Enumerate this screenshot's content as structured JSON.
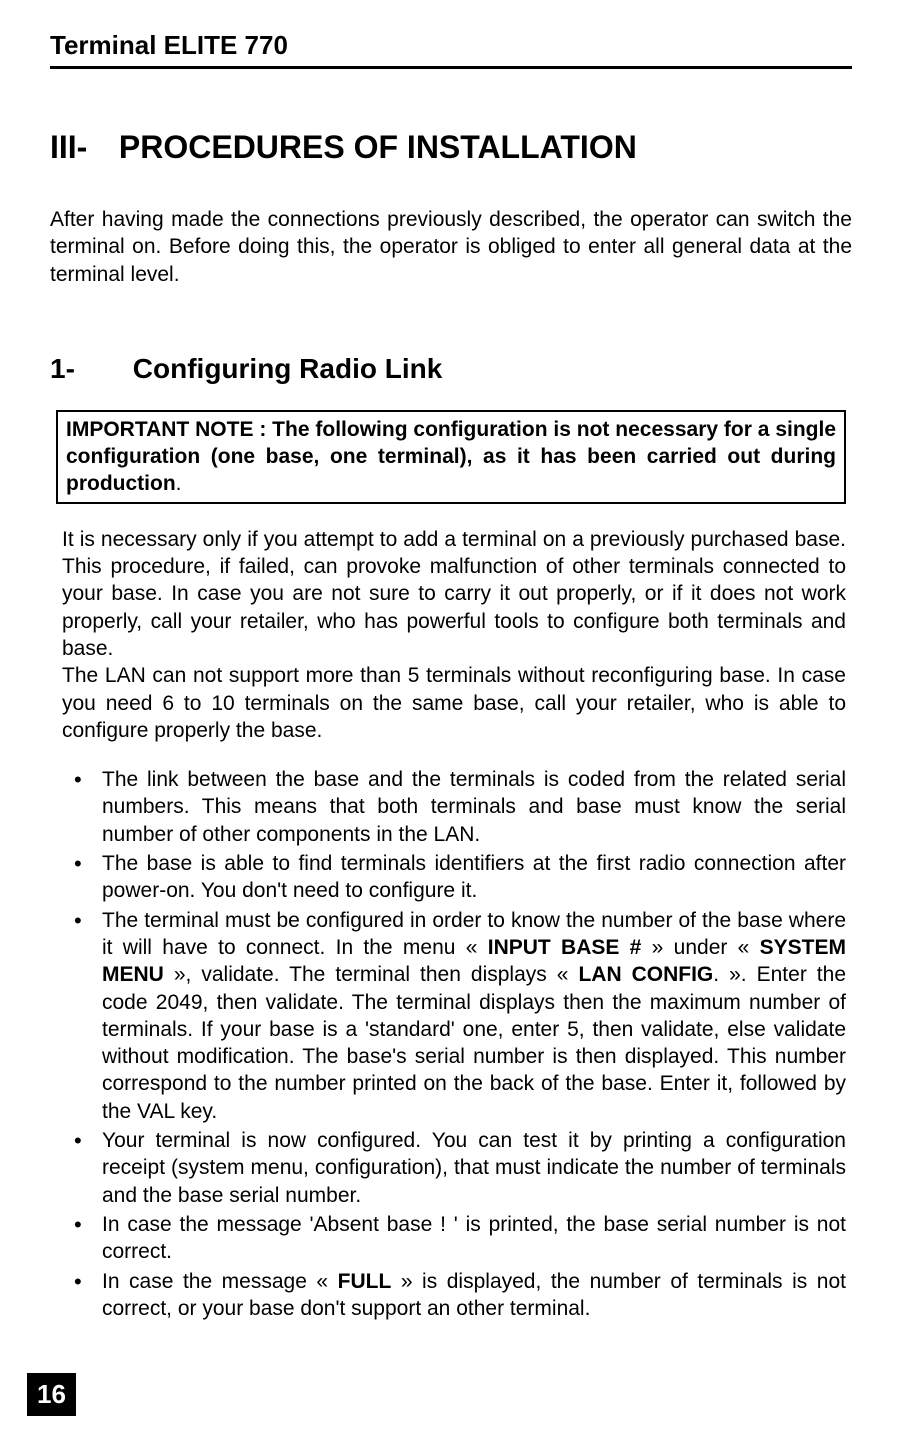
{
  "header": {
    "title": "Terminal ELITE 770"
  },
  "section": {
    "number": "III-",
    "title": "PROCEDURES OF INSTALLATION"
  },
  "intro": "After having made the connections previously described, the operator can switch the terminal on. Before doing this, the operator is obliged to enter all general data at the terminal level.",
  "subsection": {
    "number": "1-",
    "title": "Configuring Radio Link"
  },
  "note": {
    "prefix": "IMPORTANT NOTE : The following configuration is not necessary for a single configuration (one base, one terminal), as it has been carried out during production",
    "suffix": "."
  },
  "para1": "It is necessary only if you attempt to add a terminal on a previously purchased base. This procedure, if failed, can provoke malfunction of other terminals connected to your base. In case you are not sure to carry it out properly, or if it does not work properly, call your retailer, who has powerful tools to configure both terminals and base.",
  "para2": "The LAN can not support more than 5 terminals without reconfiguring base. In case you need 6 to 10 terminals on the same base, call your retailer, who is able to configure properly the base.",
  "bullets": {
    "b1": "The link between the base and the terminals is coded from the related serial numbers. This means that both terminals and base must know the serial number of other components in the LAN.",
    "b2": "The base is able to find terminals identifiers at the first radio connection after power-on. You don't need to configure it.",
    "b3": {
      "t1": "The terminal must be configured in order to know the number of the base where it will have to connect. In the menu « ",
      "bold1": "INPUT BASE #",
      "t2": " » under « ",
      "bold2": "SYSTEM MENU",
      "t3": " », validate. The terminal then displays « ",
      "bold3": "LAN CONFIG",
      "t4": ". ». Enter the code 2049, then validate. The terminal displays then the maximum number of terminals. If your base is a 'standard' one, enter 5, then validate, else validate without modification. The base's serial number is then displayed. This number correspond to the number printed on the back of the base. Enter it, followed by the VAL key."
    },
    "b4": "Your terminal is now configured. You can test it by printing a configuration receipt (system menu, configuration), that must indicate the number of terminals and the base serial number.",
    "b5": "In case the message 'Absent base ! ' is printed, the base serial number is not correct.",
    "b6": {
      "t1": "In case the message « ",
      "bold1": "FULL",
      "t2": " » is displayed, the number of terminals is not correct, or your base don't support an other terminal."
    }
  },
  "pageNumber": "16"
}
